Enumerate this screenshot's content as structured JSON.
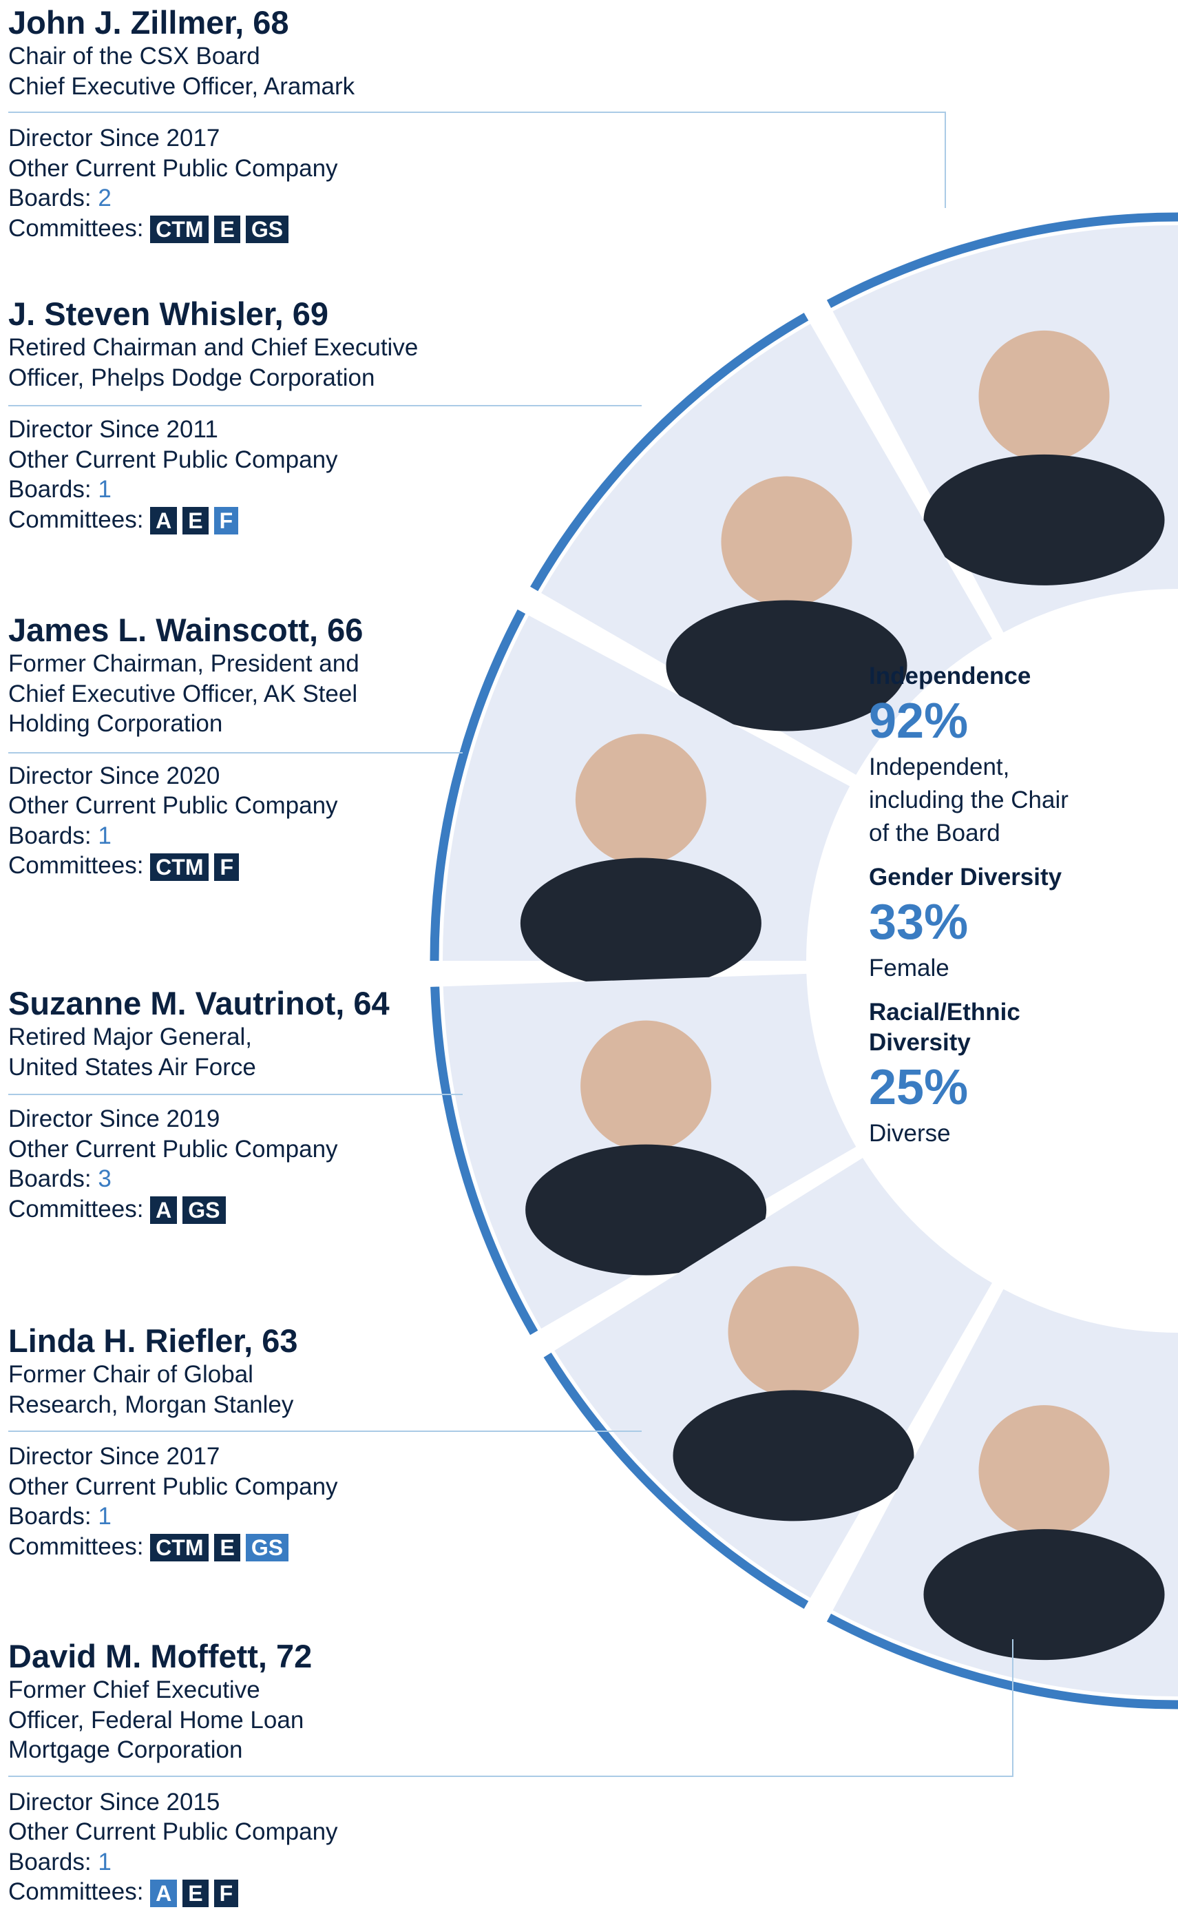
{
  "directors": [
    {
      "name": "John J. Zillmer, 68",
      "title": [
        "Chair of the CSX Board",
        "Chief Executive Officer, Aramark"
      ],
      "since": "Director Since 2017",
      "other_boards_label_1": "Other Current Public Company",
      "other_boards_label_2": "Boards:",
      "other_boards_count": "2",
      "committees_label": "Committees:",
      "committees": [
        {
          "code": "CTM",
          "style": "dark"
        },
        {
          "code": "E",
          "style": "dark"
        },
        {
          "code": "GS",
          "style": "dark"
        }
      ]
    },
    {
      "name": "J. Steven Whisler, 69",
      "title": [
        "Retired Chairman and Chief Executive",
        "Officer, Phelps Dodge Corporation"
      ],
      "since": "Director Since 2011",
      "other_boards_label_1": "Other Current Public Company",
      "other_boards_label_2": "Boards:",
      "other_boards_count": "1",
      "committees_label": "Committees:",
      "committees": [
        {
          "code": "A",
          "style": "dark"
        },
        {
          "code": "E",
          "style": "dark"
        },
        {
          "code": "F",
          "style": "light"
        }
      ]
    },
    {
      "name": "James L. Wainscott, 66",
      "title": [
        "Former Chairman, President and",
        "Chief Executive Officer, AK Steel",
        "Holding Corporation"
      ],
      "since": "Director Since 2020",
      "other_boards_label_1": "Other Current Public Company",
      "other_boards_label_2": "Boards:",
      "other_boards_count": "1",
      "committees_label": "Committees:",
      "committees": [
        {
          "code": "CTM",
          "style": "dark"
        },
        {
          "code": "F",
          "style": "dark"
        }
      ]
    },
    {
      "name": "Suzanne M. Vautrinot, 64",
      "title": [
        "Retired Major General,",
        "United States Air Force"
      ],
      "since": "Director Since 2019",
      "other_boards_label_1": "Other Current Public Company",
      "other_boards_label_2": "Boards:",
      "other_boards_count": "3",
      "committees_label": "Committees:",
      "committees": [
        {
          "code": "A",
          "style": "dark"
        },
        {
          "code": "GS",
          "style": "dark"
        }
      ]
    },
    {
      "name": "Linda H. Riefler, 63",
      "title": [
        "Former Chair of Global",
        "Research, Morgan Stanley"
      ],
      "since": "Director Since 2017",
      "other_boards_label_1": "Other Current Public Company",
      "other_boards_label_2": "Boards:",
      "other_boards_count": "1",
      "committees_label": "Committees:",
      "committees": [
        {
          "code": "CTM",
          "style": "dark"
        },
        {
          "code": "E",
          "style": "dark"
        },
        {
          "code": "GS",
          "style": "light"
        }
      ]
    },
    {
      "name": "David M. Moffett, 72",
      "title": [
        "Former Chief Executive",
        "Officer, Federal Home Loan",
        "Mortgage Corporation"
      ],
      "since": "Director Since 2015",
      "other_boards_label_1": "Other Current Public Company",
      "other_boards_label_2": "Boards:",
      "other_boards_count": "1",
      "committees_label": "Committees:",
      "committees": [
        {
          "code": "A",
          "style": "light"
        },
        {
          "code": "E",
          "style": "dark"
        },
        {
          "code": "F",
          "style": "dark"
        }
      ]
    }
  ],
  "stats": [
    {
      "heading": [
        "Independence"
      ],
      "percent": "92%",
      "description": [
        "Independent,",
        "including the Chair",
        "of the Board"
      ]
    },
    {
      "heading": [
        "Gender Diversity"
      ],
      "percent": "33%",
      "description": [
        "Female"
      ]
    },
    {
      "heading": [
        "Racial/Ethnic",
        "Diversity"
      ],
      "percent": "25%",
      "description": [
        "Diverse"
      ]
    }
  ],
  "colors": {
    "navy": "#0b2140",
    "accent_blue": "#3a7cc2",
    "badge_dark": "#0f2a4a",
    "panel": "#e6ebf6",
    "rule": "#aacbe6"
  }
}
